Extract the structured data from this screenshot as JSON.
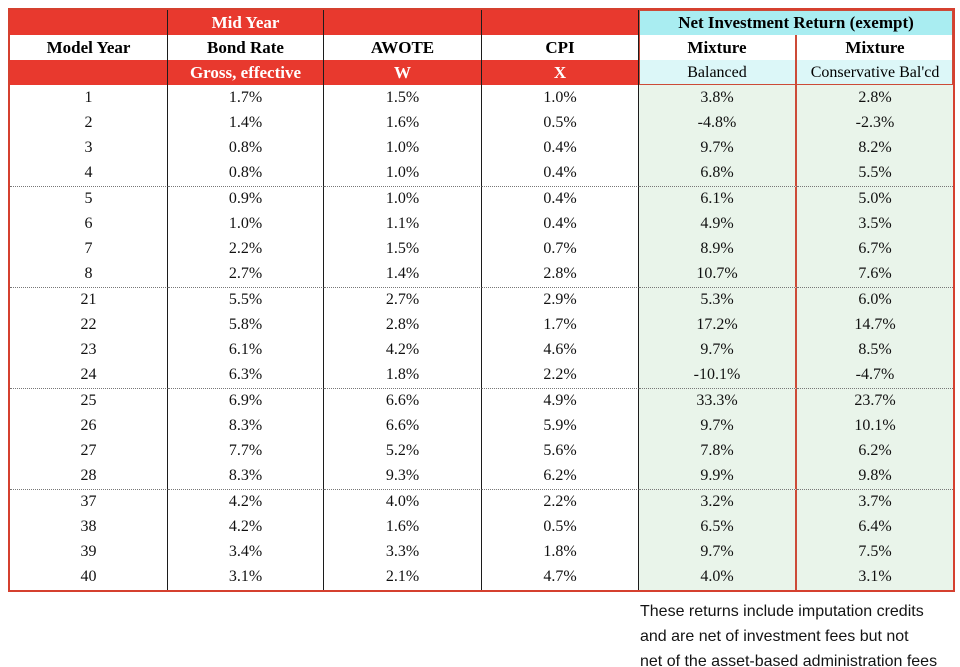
{
  "header": {
    "mid_year": "Mid Year",
    "model_year": "Model Year",
    "bond_rate": "Bond Rate",
    "awote": "AWOTE",
    "cpi": "CPI",
    "gross_effective": "Gross, effective",
    "w": "W",
    "x": "X",
    "net_investment": "Net Investment Return (exempt)",
    "mixture_left": "Mixture",
    "mixture_right": "Mixture",
    "balanced": "Balanced",
    "conservative": "Conservative Bal'cd"
  },
  "chart_data": {
    "type": "table",
    "columns": [
      "Model Year",
      "Mid Year Bond Rate (Gross, effective)",
      "AWOTE (W)",
      "CPI (X)",
      "Net Investment Return (exempt) Mixture Balanced",
      "Net Investment Return (exempt) Mixture Conservative Bal'cd"
    ],
    "rows": [
      [
        "1",
        "1.7%",
        "1.5%",
        "1.0%",
        "3.8%",
        "2.8%"
      ],
      [
        "2",
        "1.4%",
        "1.6%",
        "0.5%",
        "-4.8%",
        "-2.3%"
      ],
      [
        "3",
        "0.8%",
        "1.0%",
        "0.4%",
        "9.7%",
        "8.2%"
      ],
      [
        "4",
        "0.8%",
        "1.0%",
        "0.4%",
        "6.8%",
        "5.5%"
      ],
      [
        "5",
        "0.9%",
        "1.0%",
        "0.4%",
        "6.1%",
        "5.0%"
      ],
      [
        "6",
        "1.0%",
        "1.1%",
        "0.4%",
        "4.9%",
        "3.5%"
      ],
      [
        "7",
        "2.2%",
        "1.5%",
        "0.7%",
        "8.9%",
        "6.7%"
      ],
      [
        "8",
        "2.7%",
        "1.4%",
        "2.8%",
        "10.7%",
        "7.6%"
      ],
      [
        "21",
        "5.5%",
        "2.7%",
        "2.9%",
        "5.3%",
        "6.0%"
      ],
      [
        "22",
        "5.8%",
        "2.8%",
        "1.7%",
        "17.2%",
        "14.7%"
      ],
      [
        "23",
        "6.1%",
        "4.2%",
        "4.6%",
        "9.7%",
        "8.5%"
      ],
      [
        "24",
        "6.3%",
        "1.8%",
        "2.2%",
        "-10.1%",
        "-4.7%"
      ],
      [
        "25",
        "6.9%",
        "6.6%",
        "4.9%",
        "33.3%",
        "23.7%"
      ],
      [
        "26",
        "8.3%",
        "6.6%",
        "5.9%",
        "9.7%",
        "10.1%"
      ],
      [
        "27",
        "7.7%",
        "5.2%",
        "5.6%",
        "7.8%",
        "6.2%"
      ],
      [
        "28",
        "8.3%",
        "9.3%",
        "6.2%",
        "9.9%",
        "9.8%"
      ],
      [
        "37",
        "4.2%",
        "4.0%",
        "2.2%",
        "3.2%",
        "3.7%"
      ],
      [
        "38",
        "4.2%",
        "1.6%",
        "0.5%",
        "6.5%",
        "6.4%"
      ],
      [
        "39",
        "3.4%",
        "3.3%",
        "1.8%",
        "9.7%",
        "7.5%"
      ],
      [
        "40",
        "3.1%",
        "2.1%",
        "4.7%",
        "4.0%",
        "3.1%"
      ]
    ]
  },
  "footnote": {
    "line1": "These returns include imputation credits",
    "line2": "and are net of investment fees but not",
    "line3": "net of the asset-based administration fees"
  },
  "colors": {
    "header_red": "#e8392e",
    "cyan_band": "#a9edf1",
    "cyan_light": "#dcf7f8",
    "mint_green": "#e9f4ea",
    "red_border": "#cc4b38"
  }
}
